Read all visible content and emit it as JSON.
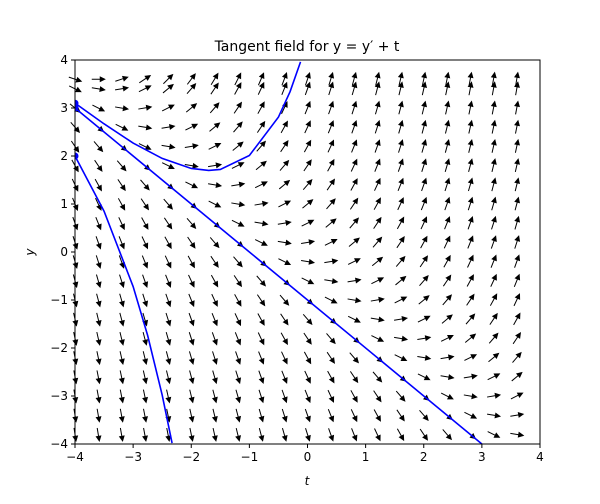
{
  "chart_data": {
    "type": "direction-field",
    "title": "Tangent field for y = y′ + t",
    "x_label": "t",
    "y_label": "y",
    "xlim": [
      -4,
      4
    ],
    "ylim": [
      -4,
      4
    ],
    "xticks": [
      {
        "value": -4,
        "label": "−4"
      },
      {
        "value": -3,
        "label": "−3"
      },
      {
        "value": -2,
        "label": "−2"
      },
      {
        "value": -1,
        "label": "−1"
      },
      0,
      1,
      2,
      3,
      4
    ],
    "yticks": [
      {
        "value": -4,
        "label": "−4"
      },
      {
        "value": -3,
        "label": "−3"
      },
      {
        "value": -2,
        "label": "−2"
      },
      {
        "value": -1,
        "label": "−1"
      },
      0,
      1,
      2,
      3,
      4
    ],
    "field": {
      "color": "#000000",
      "x": [
        -4,
        -3.6,
        -3.2,
        -2.8,
        -2.4,
        -2,
        -1.6,
        -1.2,
        -0.8,
        -0.4,
        0,
        0.4,
        0.8,
        1.2,
        1.6,
        2,
        2.4,
        2.8,
        3.2,
        3.6
      ],
      "y": [
        -3.8,
        -3.4,
        -3,
        -2.6,
        -2.2,
        -1.8,
        -1.4,
        -1,
        -0.6,
        -0.2,
        0.2,
        0.6,
        1,
        1.4,
        1.8,
        2.2,
        2.6,
        3,
        3.4,
        3.6
      ]
    },
    "series": [
      {
        "color": "#0000ff",
        "x": [
          -4,
          -3.5,
          -3,
          -2.5,
          -2,
          -1.7,
          -1.5,
          -1,
          -0.5,
          -0.3,
          -0.12
        ],
        "values": [
          3.1,
          2.67,
          2.27,
          1.95,
          1.74,
          1.7,
          1.72,
          2.01,
          2.81,
          3.34,
          3.96
        ]
      },
      {
        "color": "#0000ff",
        "x": [
          -4,
          3
        ],
        "values": [
          3,
          -4
        ]
      },
      {
        "color": "#0000ff",
        "x": [
          -4,
          -3.5,
          -3,
          -2.75,
          -2.5,
          -2.33
        ],
        "values": [
          2,
          0.85,
          -0.72,
          -1.74,
          -2.98,
          -3.98
        ]
      }
    ],
    "points": {
      "color": "#0000ff",
      "x": [
        -4,
        -4,
        -4
      ],
      "values": [
        3.1,
        3,
        2
      ]
    }
  }
}
